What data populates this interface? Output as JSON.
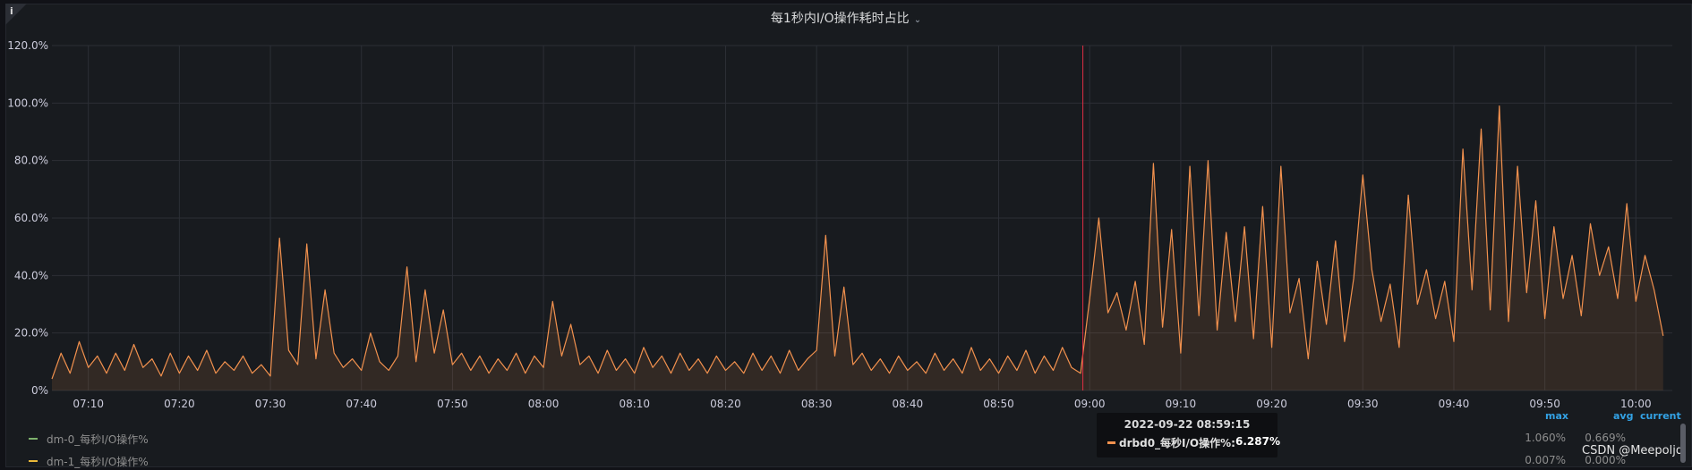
{
  "panel": {
    "title": "每1秒内I/O操作耗时占比",
    "info_icon": "info-icon",
    "watermark": "CSDN @Meepoljd"
  },
  "chart_data": {
    "type": "area",
    "title": "每1秒内I/O操作耗时占比",
    "x_tick_labels": [
      "07:10",
      "07:20",
      "07:30",
      "07:40",
      "07:50",
      "08:00",
      "08:10",
      "08:20",
      "08:30",
      "08:40",
      "08:50",
      "09:00",
      "09:10",
      "09:20",
      "09:30",
      "09:40",
      "09:50",
      "10:00"
    ],
    "x_range": [
      "07:06",
      "10:04"
    ],
    "y_tick_labels": [
      "0%",
      "20.0%",
      "40.0%",
      "60.0%",
      "80.0%",
      "100.0%",
      "120.0%"
    ],
    "ylim": [
      0,
      120
    ],
    "grid": true,
    "crosshair_time": "08:59:15",
    "series": [
      {
        "name": "drbd0_每秒I/O操作%",
        "color": "#f2914e",
        "fill": true,
        "points": [
          [
            "07:06",
            4
          ],
          [
            "07:07",
            13
          ],
          [
            "07:08",
            6
          ],
          [
            "07:09",
            17
          ],
          [
            "07:10",
            8
          ],
          [
            "07:11",
            12
          ],
          [
            "07:12",
            6
          ],
          [
            "07:13",
            13
          ],
          [
            "07:14",
            7
          ],
          [
            "07:15",
            16
          ],
          [
            "07:16",
            8
          ],
          [
            "07:17",
            11
          ],
          [
            "07:18",
            5
          ],
          [
            "07:19",
            13
          ],
          [
            "07:20",
            6
          ],
          [
            "07:21",
            12
          ],
          [
            "07:22",
            7
          ],
          [
            "07:23",
            14
          ],
          [
            "07:24",
            6
          ],
          [
            "07:25",
            10
          ],
          [
            "07:26",
            7
          ],
          [
            "07:27",
            12
          ],
          [
            "07:28",
            6
          ],
          [
            "07:29",
            9
          ],
          [
            "07:30",
            5
          ],
          [
            "07:31",
            53
          ],
          [
            "07:32",
            14
          ],
          [
            "07:33",
            9
          ],
          [
            "07:34",
            51
          ],
          [
            "07:35",
            11
          ],
          [
            "07:36",
            35
          ],
          [
            "07:37",
            13
          ],
          [
            "07:38",
            8
          ],
          [
            "07:39",
            11
          ],
          [
            "07:40",
            7
          ],
          [
            "07:41",
            20
          ],
          [
            "07:42",
            10
          ],
          [
            "07:43",
            7
          ],
          [
            "07:44",
            12
          ],
          [
            "07:45",
            43
          ],
          [
            "07:46",
            10
          ],
          [
            "07:47",
            35
          ],
          [
            "07:48",
            13
          ],
          [
            "07:49",
            28
          ],
          [
            "07:50",
            9
          ],
          [
            "07:51",
            13
          ],
          [
            "07:52",
            7
          ],
          [
            "07:53",
            12
          ],
          [
            "07:54",
            6
          ],
          [
            "07:55",
            11
          ],
          [
            "07:56",
            7
          ],
          [
            "07:57",
            13
          ],
          [
            "07:58",
            6
          ],
          [
            "07:59",
            12
          ],
          [
            "08:00",
            8
          ],
          [
            "08:01",
            31
          ],
          [
            "08:02",
            12
          ],
          [
            "08:03",
            23
          ],
          [
            "08:04",
            9
          ],
          [
            "08:05",
            12
          ],
          [
            "08:06",
            6
          ],
          [
            "08:07",
            14
          ],
          [
            "08:08",
            7
          ],
          [
            "08:09",
            11
          ],
          [
            "08:10",
            6
          ],
          [
            "08:11",
            15
          ],
          [
            "08:12",
            8
          ],
          [
            "08:13",
            12
          ],
          [
            "08:14",
            6
          ],
          [
            "08:15",
            13
          ],
          [
            "08:16",
            7
          ],
          [
            "08:17",
            11
          ],
          [
            "08:18",
            6
          ],
          [
            "08:19",
            12
          ],
          [
            "08:20",
            7
          ],
          [
            "08:21",
            10
          ],
          [
            "08:22",
            6
          ],
          [
            "08:23",
            13
          ],
          [
            "08:24",
            7
          ],
          [
            "08:25",
            12
          ],
          [
            "08:26",
            6
          ],
          [
            "08:27",
            14
          ],
          [
            "08:28",
            7
          ],
          [
            "08:29",
            11
          ],
          [
            "08:30",
            14
          ],
          [
            "08:31",
            54
          ],
          [
            "08:32",
            12
          ],
          [
            "08:33",
            36
          ],
          [
            "08:34",
            9
          ],
          [
            "08:35",
            13
          ],
          [
            "08:36",
            7
          ],
          [
            "08:37",
            11
          ],
          [
            "08:38",
            6
          ],
          [
            "08:39",
            12
          ],
          [
            "08:40",
            7
          ],
          [
            "08:41",
            10
          ],
          [
            "08:42",
            6
          ],
          [
            "08:43",
            13
          ],
          [
            "08:44",
            7
          ],
          [
            "08:45",
            11
          ],
          [
            "08:46",
            6
          ],
          [
            "08:47",
            15
          ],
          [
            "08:48",
            7
          ],
          [
            "08:49",
            11
          ],
          [
            "08:50",
            6
          ],
          [
            "08:51",
            12
          ],
          [
            "08:52",
            7
          ],
          [
            "08:53",
            14
          ],
          [
            "08:54",
            6
          ],
          [
            "08:55",
            12
          ],
          [
            "08:56",
            7
          ],
          [
            "08:57",
            15
          ],
          [
            "08:58",
            8
          ],
          [
            "08:59",
            6
          ],
          [
            "09:00",
            32
          ],
          [
            "09:01",
            60
          ],
          [
            "09:02",
            27
          ],
          [
            "09:03",
            34
          ],
          [
            "09:04",
            21
          ],
          [
            "09:05",
            38
          ],
          [
            "09:06",
            16
          ],
          [
            "09:07",
            79
          ],
          [
            "09:08",
            22
          ],
          [
            "09:09",
            56
          ],
          [
            "09:10",
            13
          ],
          [
            "09:11",
            78
          ],
          [
            "09:12",
            26
          ],
          [
            "09:13",
            80
          ],
          [
            "09:14",
            21
          ],
          [
            "09:15",
            55
          ],
          [
            "09:16",
            24
          ],
          [
            "09:17",
            57
          ],
          [
            "09:18",
            18
          ],
          [
            "09:19",
            64
          ],
          [
            "09:20",
            15
          ],
          [
            "09:21",
            78
          ],
          [
            "09:22",
            27
          ],
          [
            "09:23",
            39
          ],
          [
            "09:24",
            11
          ],
          [
            "09:25",
            45
          ],
          [
            "09:26",
            23
          ],
          [
            "09:27",
            52
          ],
          [
            "09:28",
            17
          ],
          [
            "09:29",
            39
          ],
          [
            "09:30",
            75
          ],
          [
            "09:31",
            42
          ],
          [
            "09:32",
            24
          ],
          [
            "09:33",
            37
          ],
          [
            "09:34",
            15
          ],
          [
            "09:35",
            68
          ],
          [
            "09:36",
            30
          ],
          [
            "09:37",
            42
          ],
          [
            "09:38",
            25
          ],
          [
            "09:39",
            38
          ],
          [
            "09:40",
            17
          ],
          [
            "09:41",
            84
          ],
          [
            "09:42",
            35
          ],
          [
            "09:43",
            91
          ],
          [
            "09:44",
            28
          ],
          [
            "09:45",
            99
          ],
          [
            "09:46",
            24
          ],
          [
            "09:47",
            78
          ],
          [
            "09:48",
            34
          ],
          [
            "09:49",
            66
          ],
          [
            "09:50",
            25
          ],
          [
            "09:51",
            57
          ],
          [
            "09:52",
            32
          ],
          [
            "09:53",
            47
          ],
          [
            "09:54",
            26
          ],
          [
            "09:55",
            58
          ],
          [
            "09:56",
            40
          ],
          [
            "09:57",
            50
          ],
          [
            "09:58",
            32
          ],
          [
            "09:59",
            65
          ],
          [
            "10:00",
            31
          ],
          [
            "10:01",
            47
          ],
          [
            "10:02",
            35
          ],
          [
            "10:03",
            19
          ]
        ]
      }
    ]
  },
  "legend": {
    "columns": [
      "max",
      "avg",
      "current"
    ],
    "rows": [
      {
        "name": "dm-0_每秒I/O操作%",
        "color": "#7eb26d",
        "max": "1.060%",
        "avg": "0.669%"
      },
      {
        "name": "dm-1_每秒I/O操作%",
        "color": "#eab839",
        "max": "0.007%",
        "avg": "0.000%"
      }
    ]
  },
  "tooltip": {
    "time": "2022-09-22 08:59:15",
    "series_name": "drbd0_每秒I/O操作%:",
    "series_value": "6.287%",
    "color": "#f2914e"
  }
}
